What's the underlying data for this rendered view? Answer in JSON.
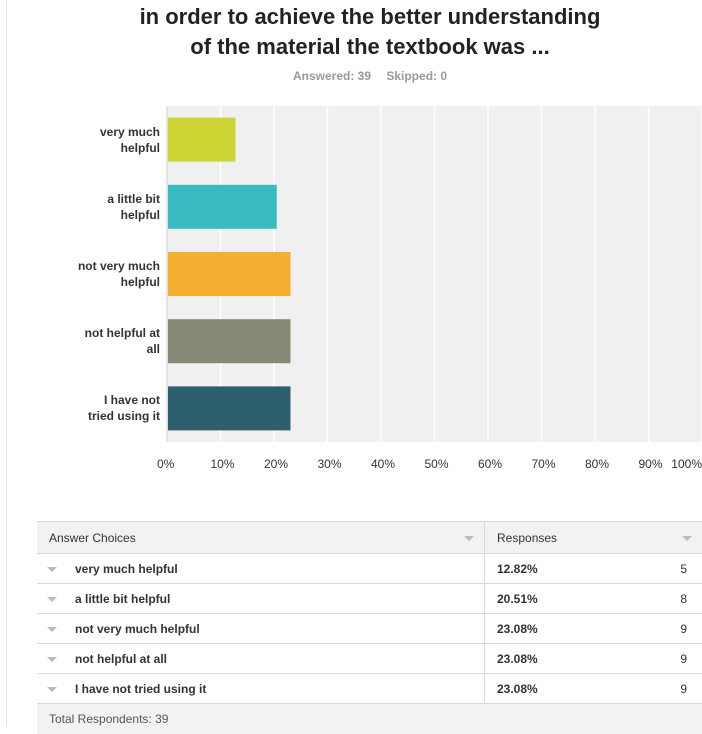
{
  "question": {
    "title_line1": "in order to achieve the better understanding",
    "title_line2": "of the material the textbook was ..."
  },
  "stats": {
    "answered": "Answered: 39",
    "skipped": "Skipped: 0"
  },
  "chart_data": {
    "type": "bar",
    "orientation": "horizontal",
    "categories": [
      "very much helpful",
      "a little bit helpful",
      "not very much helpful",
      "not helpful at all",
      "I have not tried using it"
    ],
    "category_lines": [
      [
        "very much",
        "helpful"
      ],
      [
        "a little bit",
        "helpful"
      ],
      [
        "not very much",
        "helpful"
      ],
      [
        "not helpful at",
        "all"
      ],
      [
        "I have not",
        "tried using it"
      ]
    ],
    "values": [
      12.82,
      20.51,
      23.08,
      23.08,
      23.08
    ],
    "colors": [
      "#cdd535",
      "#39bcc1",
      "#f5ae30",
      "#898977",
      "#2e5f6e"
    ],
    "xlim": [
      0,
      100
    ],
    "ticks": [
      "0%",
      "10%",
      "20%",
      "30%",
      "40%",
      "50%",
      "60%",
      "70%",
      "80%",
      "90%",
      "100%"
    ],
    "grid": true,
    "plot_background": "#f0f0f0"
  },
  "table": {
    "header_choice": "Answer Choices",
    "header_responses": "Responses",
    "rows": [
      {
        "label": "very much helpful",
        "percent": "12.82%",
        "count": "5"
      },
      {
        "label": "a little bit helpful",
        "percent": "20.51%",
        "count": "8"
      },
      {
        "label": "not very much helpful",
        "percent": "23.08%",
        "count": "9"
      },
      {
        "label": "not helpful at all",
        "percent": "23.08%",
        "count": "9"
      },
      {
        "label": "I have not tried using it",
        "percent": "23.08%",
        "count": "9"
      }
    ],
    "footer": "Total Respondents: 39"
  }
}
